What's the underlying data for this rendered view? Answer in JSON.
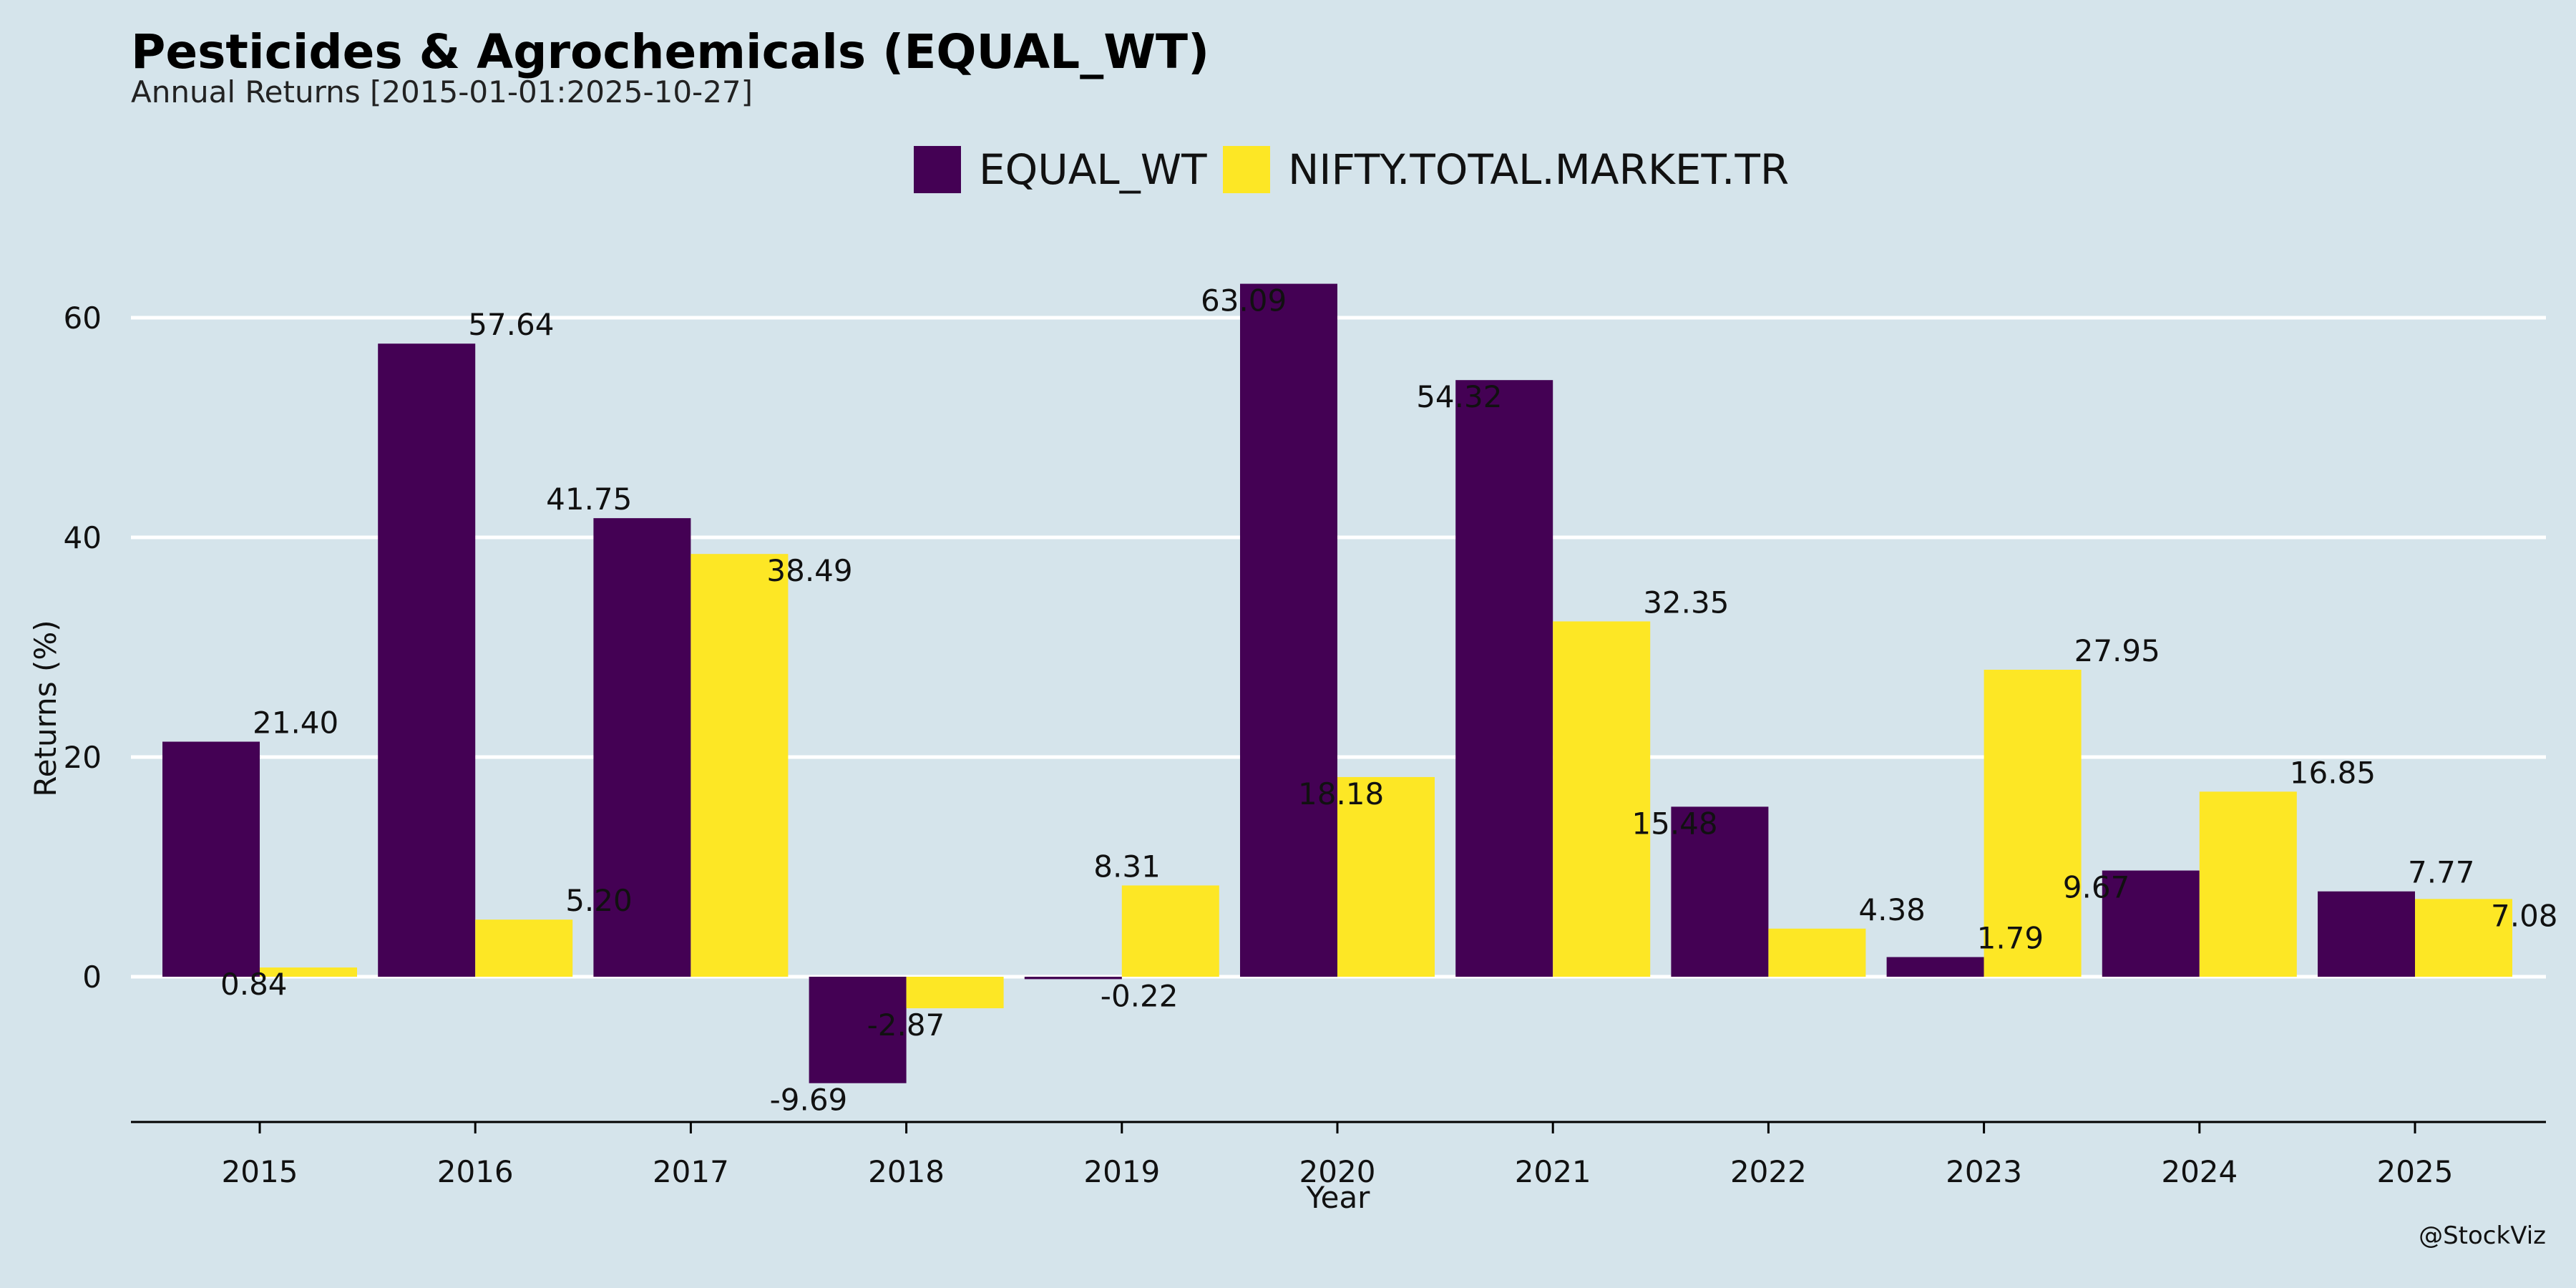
{
  "chart_data": {
    "type": "bar",
    "title": "Pesticides & Agrochemicals (EQUAL_WT)",
    "subtitle": "Annual Returns [2015-01-01:2025-10-27]",
    "xlabel": "Year",
    "ylabel": "Returns (%)",
    "categories": [
      "2015",
      "2016",
      "2017",
      "2018",
      "2019",
      "2020",
      "2021",
      "2022",
      "2023",
      "2024",
      "2025"
    ],
    "series": [
      {
        "name": "EQUAL_WT",
        "color": "#440154",
        "values": [
          21.4,
          57.64,
          41.75,
          -9.69,
          -0.22,
          63.09,
          54.32,
          15.48,
          1.79,
          9.67,
          7.77
        ]
      },
      {
        "name": "NIFTY.TOTAL.MARKET.TR",
        "color": "#fde725",
        "values": [
          0.84,
          5.2,
          38.49,
          -2.87,
          8.31,
          18.18,
          32.35,
          4.38,
          27.95,
          16.85,
          7.08
        ]
      }
    ],
    "ylim": [
      -13.4,
      70
    ],
    "yticks": [
      0,
      20,
      40,
      60
    ],
    "grid": true,
    "legend": "top-center",
    "watermark": "@StockViz"
  }
}
